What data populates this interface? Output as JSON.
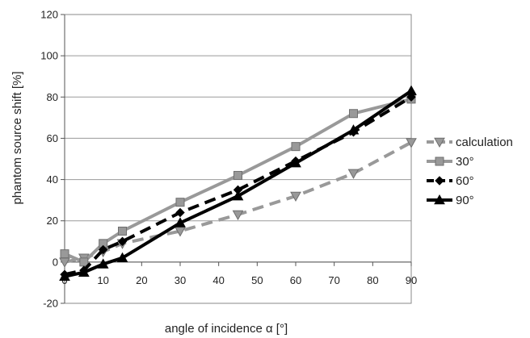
{
  "chart_data": {
    "type": "line",
    "title": "",
    "xlabel": "angle of incidence α [°]",
    "ylabel": "phantom source shift [%]",
    "xlim": [
      0,
      90
    ],
    "ylim": [
      -20,
      120
    ],
    "xticks": [
      0,
      10,
      20,
      30,
      40,
      50,
      60,
      70,
      80,
      90
    ],
    "xtick_labels": [
      "0",
      "10",
      "20",
      "30",
      "40",
      "50",
      "60",
      "70",
      "80",
      "90"
    ],
    "yticks": [
      -20,
      0,
      20,
      40,
      60,
      80,
      100,
      120
    ],
    "ytick_labels": [
      "-20",
      "0",
      "20",
      "40",
      "60",
      "80",
      "100",
      "120"
    ],
    "grid": "horizontal",
    "legend_position": "right",
    "series": [
      {
        "name": "calculation",
        "color": "#999999",
        "dash": "dashed",
        "marker": "triangle-down",
        "points": [
          [
            0,
            0
          ],
          [
            5,
            2
          ],
          [
            10,
            5
          ],
          [
            15,
            9
          ],
          [
            30,
            15
          ],
          [
            45,
            23
          ],
          [
            60,
            32
          ],
          [
            75,
            43
          ],
          [
            90,
            58
          ]
        ]
      },
      {
        "name": "30°",
        "color": "#999999",
        "dash": "solid",
        "marker": "square",
        "points": [
          [
            0,
            4
          ],
          [
            5,
            0
          ],
          [
            10,
            9
          ],
          [
            15,
            15
          ],
          [
            30,
            29
          ],
          [
            45,
            42
          ],
          [
            60,
            56
          ],
          [
            75,
            72
          ],
          [
            90,
            79
          ]
        ]
      },
      {
        "name": "60°",
        "color": "#000000",
        "dash": "dashed",
        "marker": "diamond",
        "points": [
          [
            0,
            -6
          ],
          [
            5,
            -4
          ],
          [
            10,
            6
          ],
          [
            15,
            10
          ],
          [
            30,
            24
          ],
          [
            45,
            35
          ],
          [
            60,
            49
          ],
          [
            75,
            63
          ],
          [
            90,
            80
          ]
        ]
      },
      {
        "name": "90°",
        "color": "#000000",
        "dash": "solid",
        "marker": "triangle-up",
        "points": [
          [
            0,
            -7
          ],
          [
            5,
            -5
          ],
          [
            10,
            -1
          ],
          [
            15,
            2
          ],
          [
            30,
            19
          ],
          [
            45,
            32
          ],
          [
            60,
            48
          ],
          [
            75,
            64
          ],
          [
            90,
            83
          ]
        ]
      }
    ]
  }
}
